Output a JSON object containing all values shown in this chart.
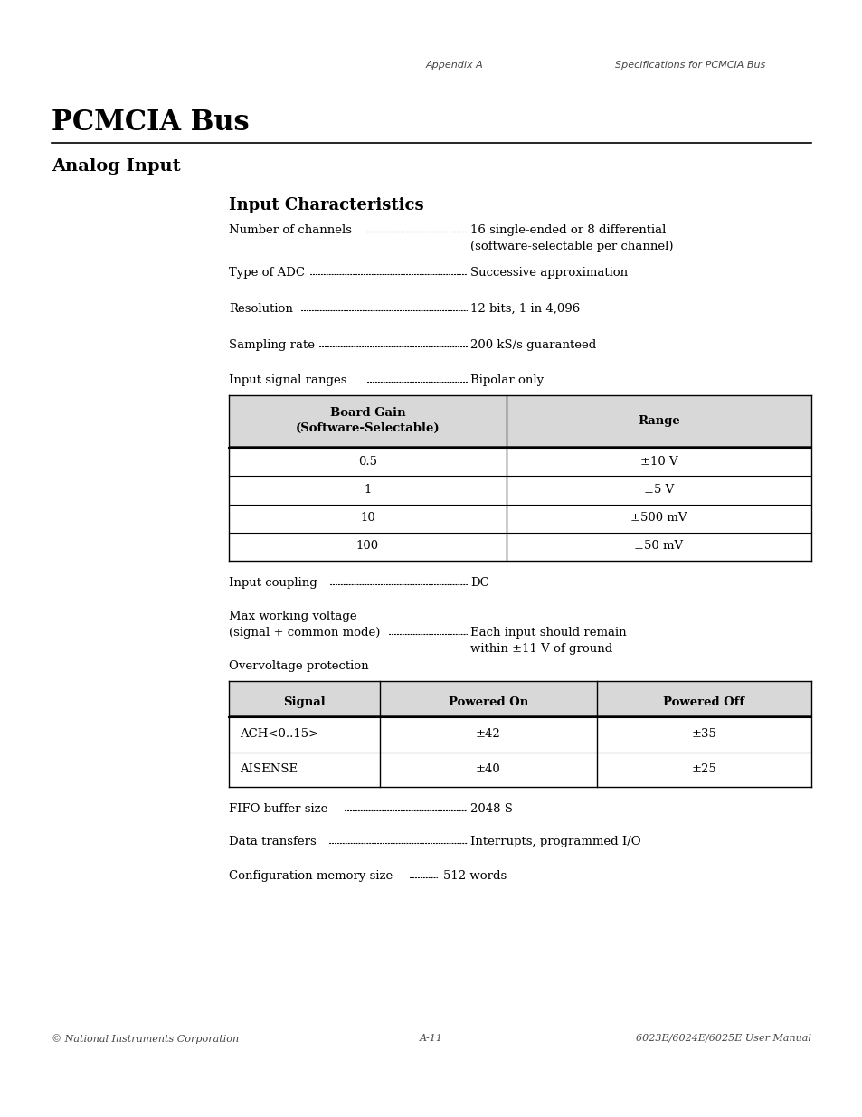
{
  "page_width": 9.54,
  "page_height": 12.35,
  "bg_color": "#ffffff",
  "header_left": "Appendix A",
  "header_right": "Specifications for PCMCIA Bus",
  "footer_left": "© National Instruments Corporation",
  "footer_center": "A-11",
  "footer_right": "6023E/6024E/6025E User Manual",
  "title_main": "PCMCIA Bus",
  "title_sub": "Analog Input",
  "section_title": "Input Characteristics",
  "table1_rows": [
    [
      "0.5",
      "±10 V"
    ],
    [
      "1",
      "±5 V"
    ],
    [
      "10",
      "±500 mV"
    ],
    [
      "100",
      "±50 mV"
    ]
  ],
  "table2_rows": [
    [
      "ACH<0..15>",
      "±42",
      "±35"
    ],
    [
      "AISENSE",
      "±40",
      "±25"
    ]
  ]
}
